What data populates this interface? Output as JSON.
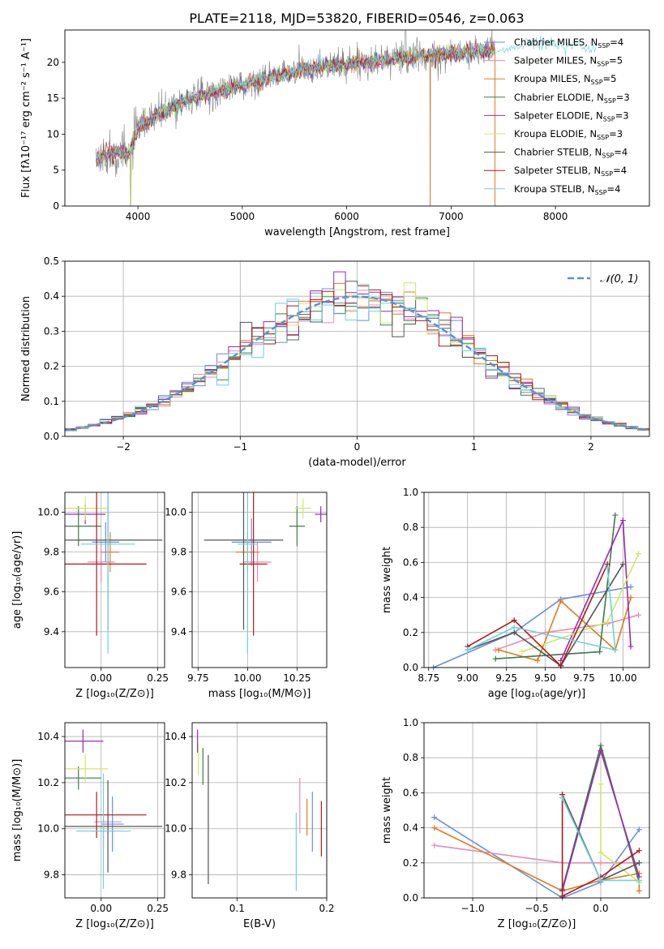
{
  "figure": {
    "title": "PLATE=2118, MJD=53820, FIBERID=0546, z=0.063",
    "colors": {
      "chabrier_miles": "#6a8fd8",
      "salpeter_miles": "#e88ab8",
      "kroupa_miles": "#e07b22",
      "chabrier_elodie": "#3f7a4a",
      "salpeter_elodie": "#9a2ab0",
      "kroupa_elodie": "#cde86a",
      "chabrier_stelib": "#555555",
      "salpeter_stelib": "#b01818",
      "kroupa_stelib": "#6ed2d8",
      "grid": "#b0b0b0"
    }
  },
  "chart_data": [
    {
      "id": "spectrum",
      "type": "line",
      "xlabel": "wavelength [Angstrom, rest frame]",
      "ylabel": "Flux [fλ10⁻¹⁷ erg cm⁻² s⁻¹ A⁻¹]",
      "xlim": [
        3300,
        8900
      ],
      "ylim": [
        0,
        24.5
      ],
      "xticks": [
        4000,
        5000,
        6000,
        7000,
        8000
      ],
      "yticks": [
        0,
        5,
        10,
        15,
        20
      ],
      "grid": false,
      "legend_position": "top-right",
      "legend": [
        {
          "label": "Chabrier MILES, N",
          "sub": "SSP",
          "suffix": "=4",
          "color": "#6a8fd8"
        },
        {
          "label": "Salpeter MILES, N",
          "sub": "SSP",
          "suffix": "=5",
          "color": "#e88ab8"
        },
        {
          "label": "Kroupa MILES, N",
          "sub": "SSP",
          "suffix": "=5",
          "color": "#e07b22"
        },
        {
          "label": "Chabrier ELODIE, N",
          "sub": "SSP",
          "suffix": "=3",
          "color": "#3f7a4a"
        },
        {
          "label": "Salpeter ELODIE, N",
          "sub": "SSP",
          "suffix": "=3",
          "color": "#9a2ab0"
        },
        {
          "label": "Kroupa ELODIE, N",
          "sub": "SSP",
          "suffix": "=3",
          "color": "#cde86a"
        },
        {
          "label": "Chabrier STELIB, N",
          "sub": "SSP",
          "suffix": "=4",
          "color": "#555555"
        },
        {
          "label": "Salpeter STELIB, N",
          "sub": "SSP",
          "suffix": "=4",
          "color": "#b01818"
        },
        {
          "label": "Kroupa STELIB, N",
          "sub": "SSP",
          "suffix": "=4",
          "color": "#6ed2d8"
        }
      ],
      "continuum": {
        "wavelength": [
          3600,
          3700,
          3800,
          3900,
          4000,
          4100,
          4200,
          4300,
          4400,
          4500,
          4600,
          4700,
          4800,
          4900,
          5000,
          5100,
          5200,
          5300,
          5400,
          5500,
          5600,
          5700,
          5800,
          5900,
          6000,
          6100,
          6200,
          6300,
          6400,
          6500,
          6600,
          6700,
          6800,
          6900,
          7000,
          7100,
          7200,
          7300,
          7400,
          7500,
          7600,
          7700,
          7800,
          7900,
          8000,
          8100,
          8200,
          8300,
          8400
        ],
        "flux": [
          6.5,
          7.2,
          7.5,
          7.0,
          10.8,
          11.8,
          12.8,
          13.3,
          14.3,
          15.0,
          15.3,
          15.7,
          16.1,
          16.5,
          16.8,
          17.2,
          17.6,
          18.0,
          18.4,
          18.7,
          19.0,
          19.3,
          19.5,
          19.7,
          19.8,
          20.0,
          20.1,
          20.2,
          20.4,
          20.6,
          20.7,
          20.9,
          21.0,
          21.1,
          21.2,
          21.3,
          21.4,
          21.5,
          21.8,
          22.1,
          22.5,
          22.7,
          22.8,
          22.7,
          22.6,
          22.4,
          22.3,
          22.2,
          22.0
        ]
      }
    },
    {
      "id": "residuals",
      "type": "histogram",
      "xlabel": "(data-model)/error",
      "ylabel": "Normed distribution",
      "xlim": [
        -2.5,
        2.5
      ],
      "ylim": [
        0,
        0.5
      ],
      "xticks": [
        -2,
        -1,
        0,
        1,
        2
      ],
      "xticklabels": [
        "−2",
        "−1",
        "0",
        "1",
        "2"
      ],
      "yticks": [
        0.0,
        0.1,
        0.2,
        0.3,
        0.4,
        0.5
      ],
      "yticklabels": [
        "0.0",
        "0.1",
        "0.2",
        "0.3",
        "0.4",
        "0.5"
      ],
      "grid": true,
      "legend_position": "top-right",
      "reference_curve": {
        "label": "𝒩(0, 1)",
        "mean": 0,
        "sigma": 1,
        "color": "#5b8fd8"
      },
      "bin_width": 0.1
    },
    {
      "id": "age-vs-z",
      "type": "errorbar",
      "xlabel": "Z [log₁₀(Z/Z⊙)]",
      "ylabel": "age  [log₁₀(age/yr)]",
      "xlim": [
        -0.16,
        0.28
      ],
      "ylim": [
        9.22,
        10.1
      ],
      "xticks": [
        0.0,
        0.25
      ],
      "xticklabels": [
        "0.00",
        "0.25"
      ],
      "yticks": [
        9.4,
        9.6,
        9.8,
        10.0
      ],
      "yticklabels": [
        "9.4",
        "9.6",
        "9.8",
        "10.0"
      ],
      "grid": true,
      "points": [
        {
          "x": 0.0,
          "xerr": 0.06,
          "y": 9.75,
          "yerr": 0.1,
          "color": "#e88ab8"
        },
        {
          "x": 0.04,
          "xerr": 0.04,
          "y": 9.8,
          "yerr": 0.1,
          "color": "#e07b22"
        },
        {
          "x": 0.02,
          "xerr": 0.06,
          "y": 9.85,
          "yerr": 0.1,
          "color": "#6a8fd8"
        },
        {
          "x": -0.1,
          "xerr": 0.1,
          "y": 9.93,
          "yerr": 0.1,
          "color": "#3f7a4a"
        },
        {
          "x": -0.07,
          "xerr": 0.09,
          "y": 9.99,
          "yerr": 0.05,
          "color": "#9a2ab0"
        },
        {
          "x": -0.07,
          "xerr": 0.1,
          "y": 10.02,
          "yerr": 0.06,
          "color": "#cde86a"
        },
        {
          "x": 0.03,
          "xerr": 0.24,
          "y": 9.86,
          "yerr": 0.45,
          "color": "#555555"
        },
        {
          "x": -0.02,
          "xerr": 0.22,
          "y": 9.74,
          "yerr": 0.36,
          "color": "#b01818"
        },
        {
          "x": 0.03,
          "xerr": 0.12,
          "y": 9.84,
          "yerr": 0.55,
          "color": "#6ed2d8"
        }
      ]
    },
    {
      "id": "age-vs-mass",
      "type": "errorbar",
      "xlabel": "mass [log₁₀(M/M⊙)]",
      "ylabel": "",
      "xlim": [
        9.72,
        10.4
      ],
      "ylim": [
        9.22,
        10.1
      ],
      "xticks": [
        9.75,
        10.0,
        10.25
      ],
      "xticklabels": [
        "9.75",
        "10.00",
        "10.25"
      ],
      "yticks": [
        9.4,
        9.6,
        9.8,
        10.0
      ],
      "yticklabels": [
        "9.4",
        "9.6",
        "9.8",
        "10.0"
      ],
      "grid": true,
      "points": [
        {
          "x": 10.05,
          "xerr": 0.07,
          "y": 9.75,
          "yerr": 0.1,
          "color": "#e88ab8"
        },
        {
          "x": 10.0,
          "xerr": 0.06,
          "y": 9.8,
          "yerr": 0.1,
          "color": "#e07b22"
        },
        {
          "x": 10.02,
          "xerr": 0.1,
          "y": 9.85,
          "yerr": 0.12,
          "color": "#6a8fd8"
        },
        {
          "x": 10.25,
          "xerr": 0.04,
          "y": 9.93,
          "yerr": 0.1,
          "color": "#3f7a4a"
        },
        {
          "x": 10.37,
          "xerr": 0.03,
          "y": 9.99,
          "yerr": 0.04,
          "color": "#9a2ab0"
        },
        {
          "x": 10.28,
          "xerr": 0.04,
          "y": 10.02,
          "yerr": 0.05,
          "color": "#cde86a"
        },
        {
          "x": 9.98,
          "xerr": 0.2,
          "y": 9.86,
          "yerr": 0.45,
          "color": "#555555"
        },
        {
          "x": 10.03,
          "xerr": 0.07,
          "y": 9.74,
          "yerr": 0.36,
          "color": "#b01818"
        },
        {
          "x": 10.0,
          "xerr": 0.05,
          "y": 9.84,
          "yerr": 0.55,
          "color": "#6ed2d8"
        }
      ]
    },
    {
      "id": "weight-vs-age",
      "type": "line",
      "xlabel": "age  [log₁₀(age/yr)]",
      "ylabel": "mass weight",
      "xlim": [
        8.72,
        10.17
      ],
      "ylim": [
        0,
        1
      ],
      "xticks": [
        8.75,
        9.0,
        9.25,
        9.5,
        9.75,
        10.0
      ],
      "xticklabels": [
        "8.75",
        "9.00",
        "9.25",
        "9.50",
        "9.75",
        "10.00"
      ],
      "yticks": [
        0.0,
        0.2,
        0.4,
        0.6,
        0.8,
        1.0
      ],
      "yticklabels": [
        "0.0",
        "0.2",
        "0.4",
        "0.6",
        "0.8",
        "1.0"
      ],
      "grid": true,
      "series": [
        {
          "color": "#6a8fd8",
          "x": [
            8.78,
            9.3,
            9.6,
            10.05
          ],
          "y": [
            0.0,
            0.2,
            0.39,
            0.46
          ]
        },
        {
          "color": "#e88ab8",
          "x": [
            9.18,
            9.5,
            9.9,
            10.1
          ],
          "y": [
            0.1,
            0.2,
            0.25,
            0.3
          ]
        },
        {
          "color": "#e07b22",
          "x": [
            9.2,
            9.45,
            9.6,
            9.95,
            10.05
          ],
          "y": [
            0.1,
            0.04,
            0.38,
            0.1,
            0.4
          ]
        },
        {
          "color": "#3f7a4a",
          "x": [
            9.18,
            9.85,
            9.95
          ],
          "y": [
            0.05,
            0.09,
            0.87
          ]
        },
        {
          "color": "#9a2ab0",
          "x": [
            9.6,
            10.0,
            10.05
          ],
          "y": [
            0.04,
            0.84,
            0.12
          ]
        },
        {
          "color": "#cde86a",
          "x": [
            9.35,
            9.9,
            10.1
          ],
          "y": [
            0.09,
            0.26,
            0.65
          ]
        },
        {
          "color": "#555555",
          "x": [
            9.0,
            9.3,
            9.6,
            10.0
          ],
          "y": [
            0.1,
            0.2,
            0.01,
            0.59
          ]
        },
        {
          "color": "#b01818",
          "x": [
            9.0,
            9.3,
            9.6,
            9.9
          ],
          "y": [
            0.12,
            0.27,
            0.01,
            0.59
          ]
        },
        {
          "color": "#6ed2d8",
          "x": [
            9.0,
            9.3,
            9.95,
            9.9
          ],
          "y": [
            0.1,
            0.23,
            0.1,
            0.57
          ]
        }
      ]
    },
    {
      "id": "mass-vs-z",
      "type": "errorbar",
      "xlabel": "Z [log₁₀(Z/Z⊙)]",
      "ylabel": "mass [log₁₀(M/M⊙)]",
      "xlim": [
        -0.16,
        0.28
      ],
      "ylim": [
        9.7,
        10.46
      ],
      "xticks": [
        0.0,
        0.25
      ],
      "xticklabels": [
        "0.00",
        "0.25"
      ],
      "yticks": [
        9.8,
        10.0,
        10.2,
        10.4
      ],
      "yticklabels": [
        "9.8",
        "10.0",
        "10.2",
        "10.4"
      ],
      "grid": true,
      "points": [
        {
          "x": 0.03,
          "xerr": 0.06,
          "y": 10.03,
          "yerr": 0.05,
          "color": "#e88ab8"
        },
        {
          "x": 0.01,
          "xerr": 0.05,
          "y": 9.99,
          "yerr": 0.07,
          "color": "#e07b22"
        },
        {
          "x": 0.05,
          "xerr": 0.05,
          "y": 10.02,
          "yerr": 0.12,
          "color": "#6a8fd8"
        },
        {
          "x": -0.1,
          "xerr": 0.1,
          "y": 10.22,
          "yerr": 0.05,
          "color": "#3f7a4a"
        },
        {
          "x": -0.08,
          "xerr": 0.09,
          "y": 10.38,
          "yerr": 0.05,
          "color": "#9a2ab0"
        },
        {
          "x": -0.07,
          "xerr": 0.1,
          "y": 10.26,
          "yerr": 0.06,
          "color": "#cde86a"
        },
        {
          "x": 0.03,
          "xerr": 0.24,
          "y": 10.01,
          "yerr": 0.2,
          "color": "#555555"
        },
        {
          "x": -0.02,
          "xerr": 0.22,
          "y": 10.06,
          "yerr": 0.1,
          "color": "#b01818"
        },
        {
          "x": 0.01,
          "xerr": 0.12,
          "y": 9.99,
          "yerr": 0.25,
          "color": "#6ed2d8"
        }
      ]
    },
    {
      "id": "mass-vs-ebv",
      "type": "errorbar",
      "xlabel": "E(B-V)",
      "ylabel": "",
      "xlim": [
        0.05,
        0.2
      ],
      "ylim": [
        9.7,
        10.46
      ],
      "xticks": [
        0.1,
        0.2
      ],
      "xticklabels": [
        "0.1",
        "0.2"
      ],
      "yticks": [
        9.8,
        10.0,
        10.2,
        10.4
      ],
      "yticklabels": [
        "9.8",
        "10.0",
        "10.2",
        "10.4"
      ],
      "grid": true,
      "points": [
        {
          "x": 0.17,
          "xerr": 0,
          "y": 10.1,
          "yerr": 0.12,
          "color": "#e88ab8"
        },
        {
          "x": 0.178,
          "xerr": 0,
          "y": 10.05,
          "yerr": 0.08,
          "color": "#e07b22"
        },
        {
          "x": 0.184,
          "xerr": 0,
          "y": 10.03,
          "yerr": 0.13,
          "color": "#6a8fd8"
        },
        {
          "x": 0.062,
          "xerr": 0,
          "y": 10.27,
          "yerr": 0.08,
          "color": "#3f7a4a"
        },
        {
          "x": 0.056,
          "xerr": 0,
          "y": 10.38,
          "yerr": 0.05,
          "color": "#9a2ab0"
        },
        {
          "x": 0.057,
          "xerr": 0,
          "y": 10.3,
          "yerr": 0.07,
          "color": "#cde86a"
        },
        {
          "x": 0.068,
          "xerr": 0,
          "y": 10.04,
          "yerr": 0.28,
          "color": "#555555"
        },
        {
          "x": 0.194,
          "xerr": 0,
          "y": 10.0,
          "yerr": 0.12,
          "color": "#b01818"
        },
        {
          "x": 0.166,
          "xerr": 0,
          "y": 9.9,
          "yerr": 0.17,
          "color": "#6ed2d8"
        }
      ]
    },
    {
      "id": "weight-vs-z",
      "type": "line",
      "xlabel": "Z [log₁₀(Z/Z⊙)]",
      "ylabel": "mass weight",
      "xlim": [
        -1.38,
        0.38
      ],
      "ylim": [
        0,
        1
      ],
      "xticks": [
        -1.0,
        -0.5,
        0.0
      ],
      "xticklabels": [
        "−1.0",
        "−0.5",
        "0.0"
      ],
      "yticks": [
        0.0,
        0.2,
        0.4,
        0.6,
        0.8,
        1.0
      ],
      "yticklabels": [
        "0.0",
        "0.2",
        "0.4",
        "0.6",
        "0.8",
        "1.0"
      ],
      "grid": true,
      "series": [
        {
          "color": "#6a8fd8",
          "x": [
            -1.3,
            -0.3,
            0.0,
            0.3
          ],
          "y": [
            0.46,
            0.0,
            0.09,
            0.39
          ]
        },
        {
          "color": "#e88ab8",
          "x": [
            -1.3,
            -0.3,
            0.0,
            0.3
          ],
          "y": [
            0.3,
            0.2,
            0.2,
            0.2
          ]
        },
        {
          "color": "#e07b22",
          "x": [
            -1.3,
            -0.3,
            0.0,
            0.3,
            0.3
          ],
          "y": [
            0.4,
            0.04,
            0.1,
            0.14,
            0.04
          ]
        },
        {
          "color": "#3f7a4a",
          "x": [
            -0.3,
            0.0,
            0.3
          ],
          "y": [
            0.05,
            0.87,
            0.09
          ]
        },
        {
          "color": "#9a2ab0",
          "x": [
            -0.3,
            0.0,
            0.3
          ],
          "y": [
            0.04,
            0.84,
            0.12
          ]
        },
        {
          "color": "#cde86a",
          "x": [
            0.0,
            0.0,
            0.3
          ],
          "y": [
            0.65,
            0.26,
            0.09
          ]
        },
        {
          "color": "#555555",
          "x": [
            -0.3,
            0.0,
            0.3
          ],
          "y": [
            0.59,
            0.1,
            0.2
          ]
        },
        {
          "color": "#b01818",
          "x": [
            -0.3,
            -0.3,
            0.0,
            0.3
          ],
          "y": [
            0.59,
            0.01,
            0.12,
            0.27
          ]
        },
        {
          "color": "#6ed2d8",
          "x": [
            -0.3,
            0.0,
            0.3
          ],
          "y": [
            0.57,
            0.1,
            0.1
          ]
        }
      ]
    }
  ]
}
